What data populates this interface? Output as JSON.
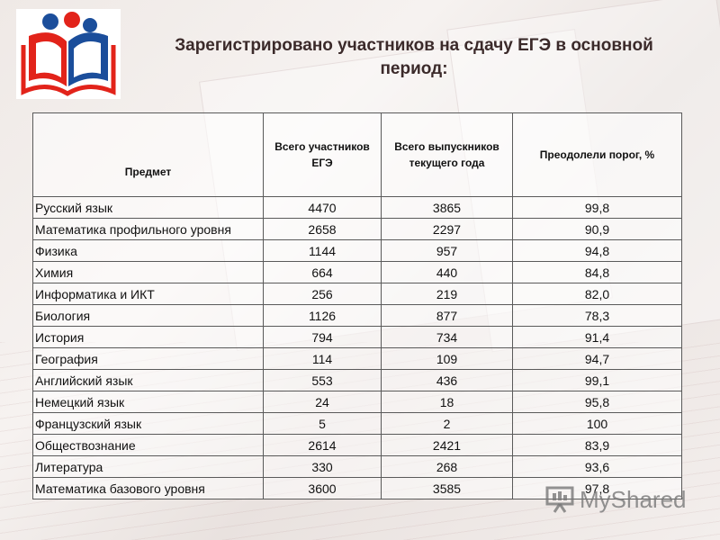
{
  "title": "Зарегистрировано участников на сдачу ЕГЭ в основной период:",
  "table": {
    "headers": [
      "Предмет",
      "Всего участников ЕГЭ",
      "Всего выпускников текущего года",
      "Преодолели порог, %"
    ],
    "rows": [
      [
        "Русский язык",
        "4470",
        "3865",
        "99,8"
      ],
      [
        "Математика профильного уровня",
        "2658",
        "2297",
        "90,9"
      ],
      [
        "Физика",
        "1144",
        "957",
        "94,8"
      ],
      [
        "Химия",
        "664",
        "440",
        "84,8"
      ],
      [
        "Информатика и ИКТ",
        "256",
        "219",
        "82,0"
      ],
      [
        "Биология",
        "1126",
        "877",
        "78,3"
      ],
      [
        "История",
        "794",
        "734",
        "91,4"
      ],
      [
        "География",
        "114",
        "109",
        "94,7"
      ],
      [
        "Английский язык",
        "553",
        "436",
        "99,1"
      ],
      [
        "Немецкий язык",
        "24",
        "18",
        "95,8"
      ],
      [
        "Французский язык",
        "5",
        "2",
        "100"
      ],
      [
        "Обществознание",
        "2614",
        "2421",
        "83,9"
      ],
      [
        "Литература",
        "330",
        "268",
        "93,6"
      ],
      [
        "Математика базового уровня",
        "3600",
        "3585",
        "97,8"
      ]
    ]
  },
  "watermark": "MyShared",
  "colors": {
    "logo_red": "#e2231a",
    "logo_blue": "#1b4e9b",
    "title": "#3b2a2a"
  },
  "icons": {
    "logo": "ege-logo-icon",
    "watermark": "presentation-icon"
  }
}
